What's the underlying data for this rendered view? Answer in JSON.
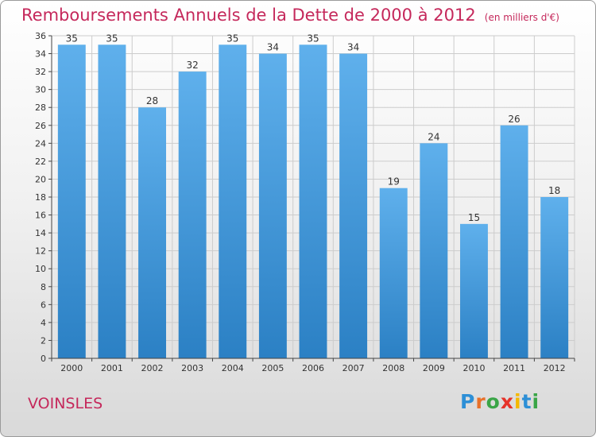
{
  "chart_data": {
    "type": "bar",
    "title": "Remboursements Annuels de la Dette de 2000 à 2012",
    "subtitle": "(en milliers d'€)",
    "xlabel": "",
    "ylabel": "",
    "categories": [
      "2000",
      "2001",
      "2002",
      "2003",
      "2004",
      "2005",
      "2006",
      "2007",
      "2008",
      "2009",
      "2010",
      "2011",
      "2012"
    ],
    "values": [
      35,
      35,
      28,
      32,
      35,
      34,
      35,
      34,
      19,
      24,
      15,
      26,
      18
    ],
    "ylim": [
      0,
      36
    ],
    "yticks": [
      0,
      2,
      4,
      6,
      8,
      10,
      12,
      14,
      16,
      18,
      20,
      22,
      24,
      26,
      28,
      30,
      32,
      34,
      36
    ],
    "grid": true,
    "bar_color_top": "#5fb0ec",
    "bar_color_bottom": "#2b80c4"
  },
  "footer": {
    "commune": "VOINSLES",
    "logo_letters": [
      "P",
      "r",
      "o",
      "x",
      "i",
      "t",
      "i"
    ],
    "logo_colors": [
      "#2d8fd6",
      "#e8712a",
      "#3aa547",
      "#e6332a",
      "#f5b800",
      "#2d8fd6",
      "#3aa547"
    ]
  },
  "colors": {
    "title": "#c5285b",
    "grid": "#cccccc",
    "axis": "#444444"
  }
}
